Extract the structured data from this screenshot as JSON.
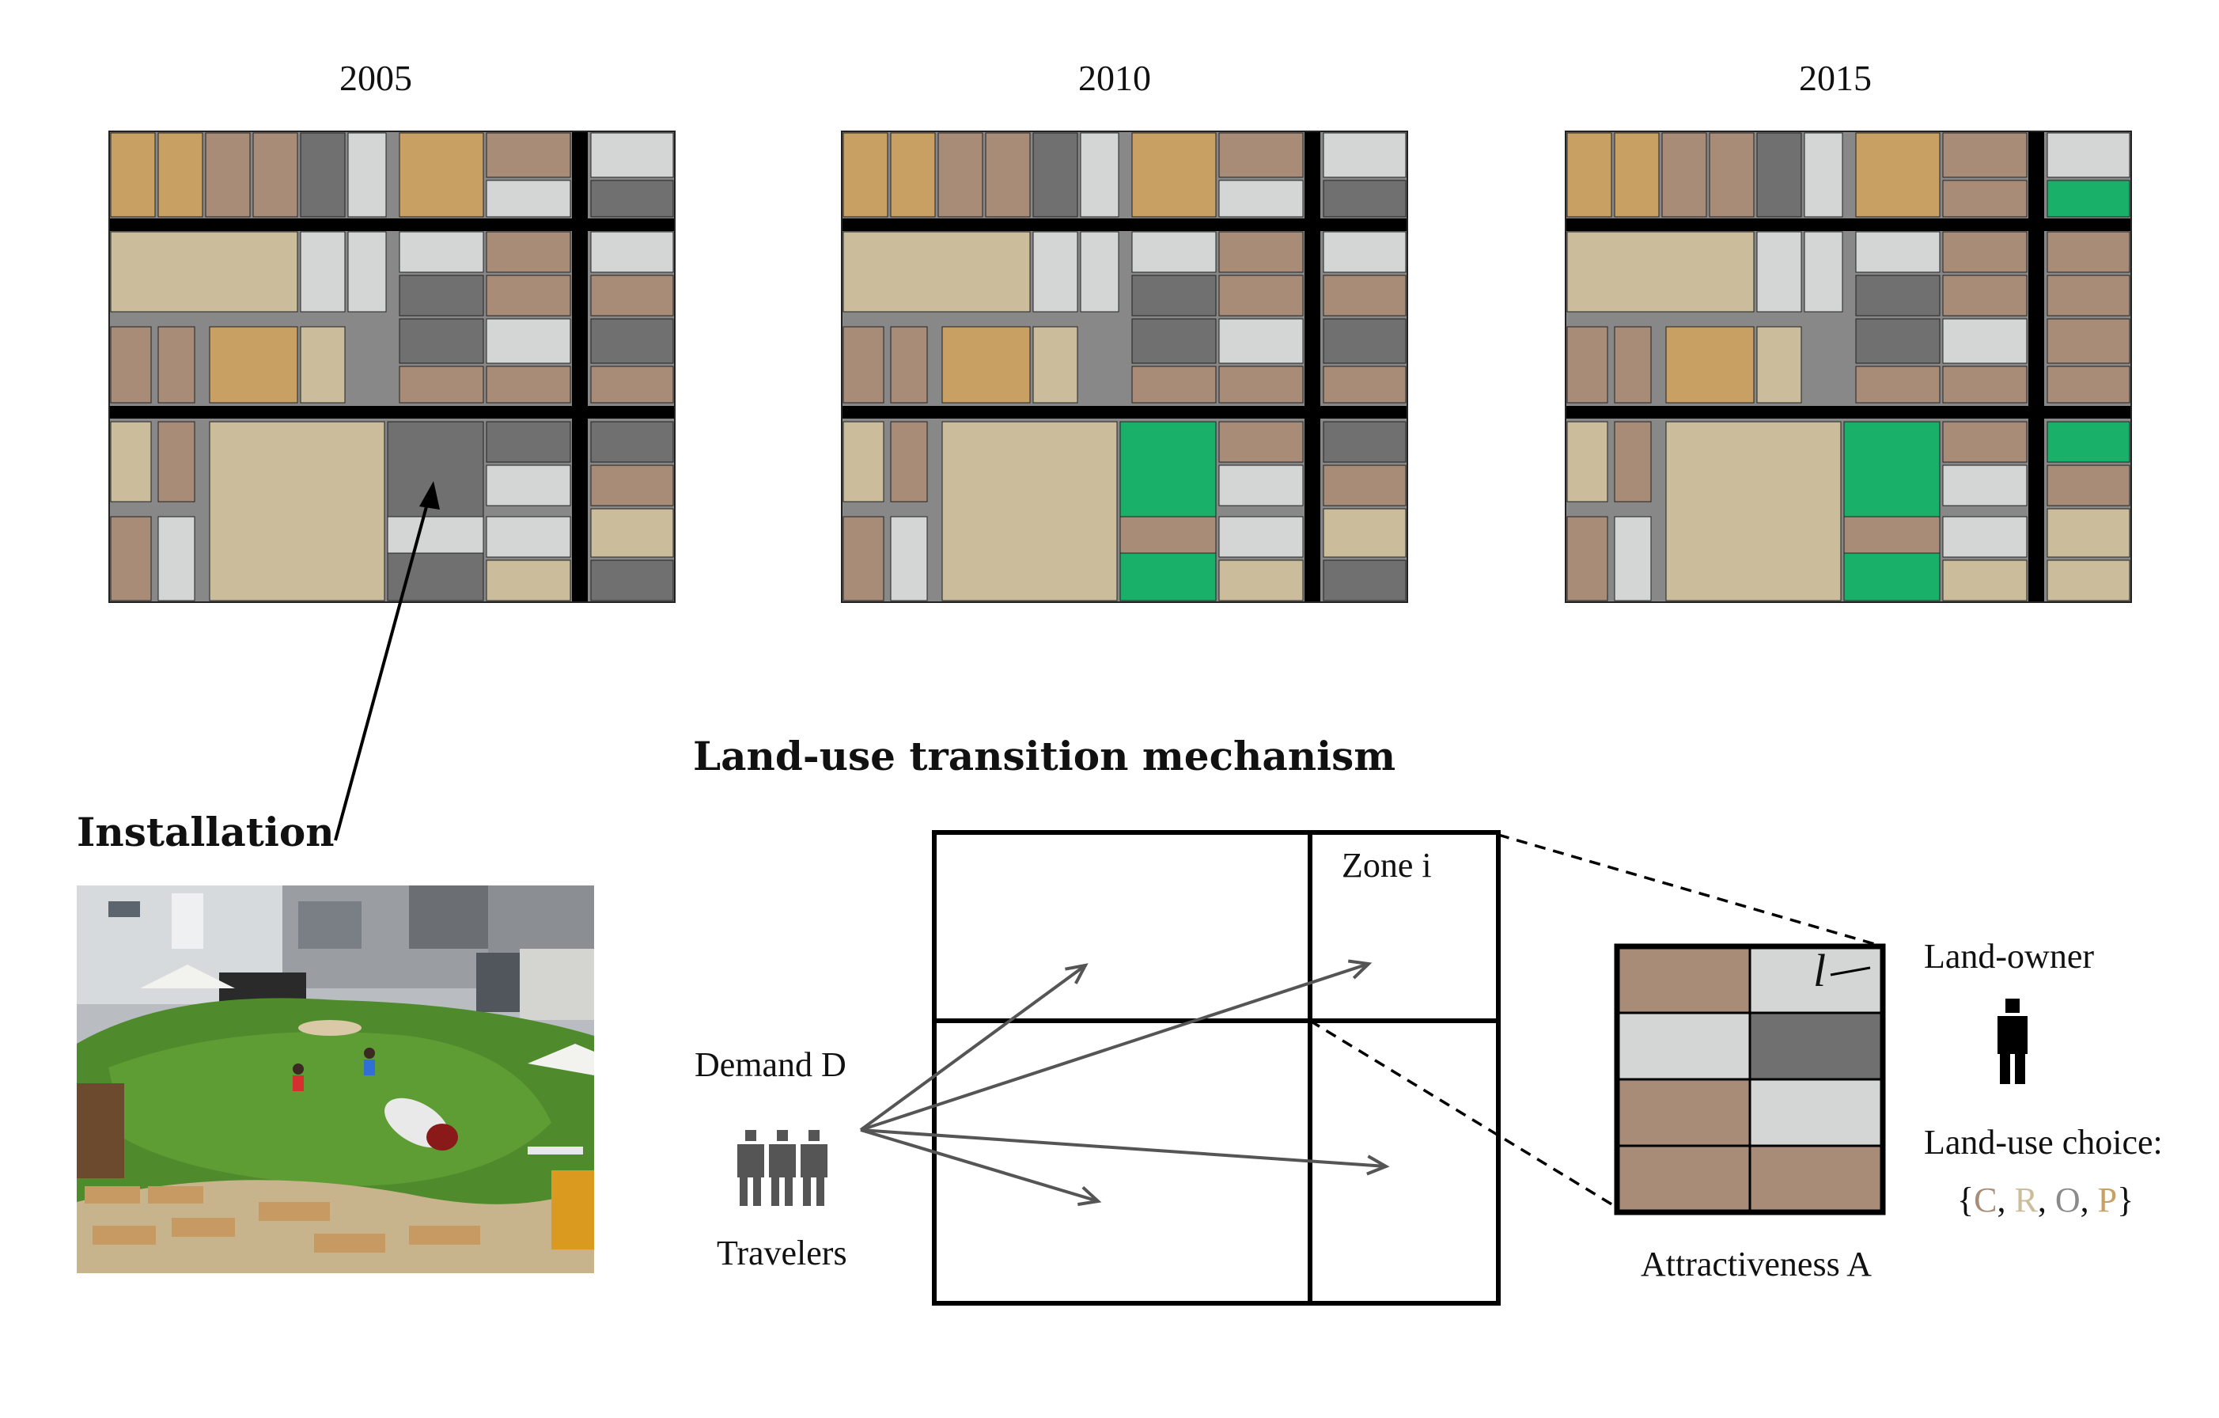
{
  "colors": {
    "C": "#c9a063",
    "R": "#cbbd9b",
    "O": "#a88c78",
    "P": "#a88c78",
    "brown": "#a88c78",
    "orange": "#c9a063",
    "beige": "#cbbd9b",
    "dark_gray": "#707070",
    "light_gray": "#d4d6d6",
    "green": "#19b06a",
    "road_minor": "#888888",
    "road_major": "#000000"
  },
  "maps": [
    {
      "year": "2005"
    },
    {
      "year": "2010"
    },
    {
      "year": "2015"
    }
  ],
  "installation": {
    "title": "Installation",
    "photo_description_icon": "park-photo"
  },
  "mechanism": {
    "title": "Land-use transition mechanism",
    "zone_label": "Zone i",
    "demand_label": "Demand D",
    "travelers_label": "Travelers",
    "attractiveness_label": "Attractiveness A",
    "parcel_symbol": "l",
    "landowner_label": "Land-owner",
    "choice_label": "Land-use choice:",
    "choice_set": {
      "open": "{",
      "close": "}",
      "sep": ", ",
      "items": [
        {
          "letter": "C",
          "color": "#a88c78"
        },
        {
          "letter": "R",
          "color": "#cbbd9b"
        },
        {
          "letter": "O",
          "color": "#8a8a8a"
        },
        {
          "letter": "P",
          "color": "#c9a063"
        }
      ]
    }
  }
}
